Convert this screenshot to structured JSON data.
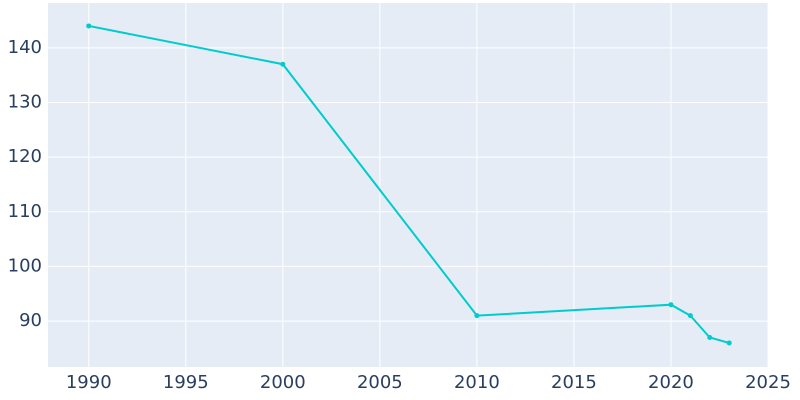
{
  "chart_data": {
    "type": "line",
    "x": [
      1990,
      2000,
      2010,
      2020,
      2021,
      2022,
      2023
    ],
    "series": [
      {
        "color": "#00cccc",
        "values": [
          144,
          137,
          91,
          93,
          91,
          87,
          86
        ]
      }
    ],
    "xlim": [
      1987.9,
      2025
    ],
    "ylim": [
      81.6,
      148.2
    ],
    "xticks": [
      1990,
      1995,
      2000,
      2005,
      2010,
      2015,
      2020,
      2025
    ],
    "yticks": [
      90,
      100,
      110,
      120,
      130,
      140
    ],
    "grid": true
  }
}
